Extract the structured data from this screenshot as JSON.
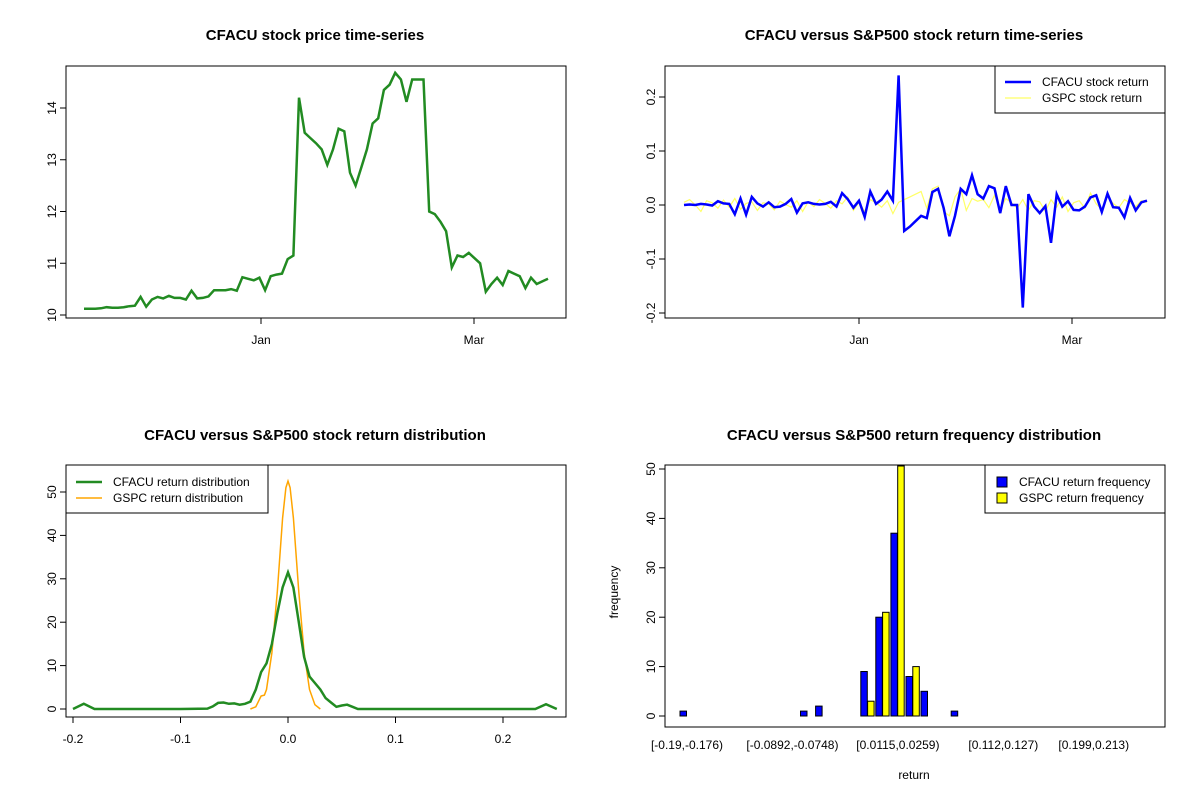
{
  "chart_data": [
    {
      "type": "line",
      "title": "CFACU stock price time-series",
      "xlabel": "",
      "ylabel": "",
      "x_ticks": [
        "Jan",
        "Mar"
      ],
      "y_ticks": [
        "10",
        "11",
        "12",
        "13",
        "14"
      ],
      "ylim": [
        10,
        14.7
      ],
      "color": "#228B22",
      "series": [
        {
          "values": [
            10.12,
            10.12,
            10.12,
            10.13,
            10.15,
            10.14,
            10.14,
            10.15,
            10.17,
            10.18,
            10.35,
            10.16,
            10.3,
            10.35,
            10.32,
            10.37,
            10.33,
            10.33,
            10.3,
            10.47,
            10.32,
            10.33,
            10.36,
            10.48,
            10.48,
            10.48,
            10.5,
            10.47,
            10.73,
            10.7,
            10.67,
            10.72,
            10.48,
            10.75,
            10.78,
            10.8,
            11.08,
            11.15,
            14.2,
            13.52,
            13.42,
            13.32,
            13.2,
            12.9,
            13.2,
            13.6,
            13.55,
            12.75,
            12.5,
            12.85,
            13.2,
            13.7,
            13.8,
            14.35,
            14.45,
            14.68,
            14.55,
            14.12,
            14.55,
            14.55,
            14.55,
            12.0,
            11.95,
            11.8,
            11.62,
            10.92,
            11.15,
            11.12,
            11.2,
            11.1,
            11.0,
            10.45,
            10.6,
            10.72,
            10.58,
            10.85,
            10.8,
            10.75,
            10.52,
            10.72,
            10.6,
            10.65,
            10.7
          ]
        }
      ]
    },
    {
      "type": "line",
      "title": "CFACU versus S&P500 stock return time-series",
      "xlabel": "",
      "ylabel": "",
      "x_ticks": [
        "Jan",
        "Mar"
      ],
      "y_ticks": [
        "-0.2",
        "-0.1",
        "0.0",
        "0.1",
        "0.2"
      ],
      "ylim": [
        -0.2,
        0.24
      ],
      "legend_position": "top-right",
      "series": [
        {
          "name": "CFACU stock return",
          "color": "#0000FF",
          "values": [
            0,
            0.001,
            0,
            0.002,
            0.001,
            -0.001,
            0.007,
            0.003,
            0.002,
            -0.017,
            0.012,
            -0.018,
            0.015,
            0.003,
            -0.003,
            0.005,
            -0.004,
            -0.003,
            0.002,
            0.011,
            -0.014,
            0.003,
            0.005,
            0.002,
            0.001,
            0.002,
            0.006,
            -0.003,
            0.022,
            0.011,
            -0.005,
            0.008,
            -0.022,
            0.025,
            0.002,
            0.01,
            0.025,
            0.008,
            0.24,
            -0.048,
            -0.04,
            -0.03,
            -0.02,
            -0.024,
            0.024,
            0.03,
            -0.006,
            -0.058,
            -0.02,
            0.03,
            0.02,
            0.055,
            0.02,
            0.012,
            0.035,
            0.031,
            -0.015,
            0.035,
            0,
            0,
            -0.19,
            0.02,
            -0.003,
            -0.015,
            -0.002,
            -0.07,
            0.02,
            -0.003,
            0.007,
            -0.009,
            -0.01,
            -0.003,
            0.014,
            0.018,
            -0.013,
            0.021,
            -0.004,
            -0.005,
            -0.023,
            0.013,
            -0.01,
            0.005,
            0.008
          ]
        },
        {
          "name": "GSPC stock return",
          "color": "#FFFF66",
          "values": [
            0.005,
            0.01,
            0,
            -0.012,
            0.008,
            0.004,
            -0.006,
            0.009,
            -0.004,
            0.012,
            -0.008,
            0.003,
            0.006,
            -0.01,
            0.004,
            0.002,
            -0.009,
            0.007,
            0.001,
            -0.004,
            0.008,
            -0.012,
            0.006,
            -0.003,
            0.01,
            0.003,
            -0.006,
            0.008,
            0.002,
            0.015,
            -0.01,
            0.005,
            -0.012,
            0.01,
            0.004,
            -0.004,
            0.008,
            -0.016,
            0.005,
            0.01,
            0.015,
            0.02,
            0.025,
            -0.006,
            0.03,
            0.035,
            -0.012,
            -0.02,
            0.015,
            0.03,
            -0.01,
            0.012,
            0.007,
            0.01,
            -0.005,
            0.018,
            -0.008,
            0.012,
            0.004,
            -0.006,
            0.01,
            -0.01,
            0.008,
            0.006,
            -0.012,
            0.01,
            -0.004,
            0.015,
            -0.012,
            0.004,
            0.008,
            -0.006,
            0.022,
            0.002,
            -0.008,
            0.016,
            0.003,
            -0.005,
            0.01,
            0.004,
            -0.003,
            0.008,
            0.005
          ]
        }
      ]
    },
    {
      "type": "line",
      "title": "CFACU versus S&P500 stock return distribution",
      "xlabel": "",
      "ylabel": "",
      "x_ticks": [
        "-0.2",
        "-0.1",
        "0.0",
        "0.1",
        "0.2"
      ],
      "y_ticks": [
        "0",
        "10",
        "20",
        "30",
        "40",
        "50"
      ],
      "xlim": [
        -0.2,
        0.25
      ],
      "ylim": [
        0,
        53
      ],
      "legend_position": "top-left",
      "series": [
        {
          "name": "CFACU return distribution",
          "color": "#228B22",
          "x": [
            -0.2,
            -0.19,
            -0.18,
            -0.17,
            -0.1,
            -0.075,
            -0.07,
            -0.065,
            -0.06,
            -0.055,
            -0.05,
            -0.045,
            -0.04,
            -0.035,
            -0.03,
            -0.025,
            -0.02,
            -0.015,
            -0.01,
            -0.005,
            0,
            0.005,
            0.01,
            0.015,
            0.02,
            0.025,
            0.03,
            0.035,
            0.04,
            0.045,
            0.05,
            0.055,
            0.06,
            0.065,
            0.07,
            0.1,
            0.2,
            0.23,
            0.24,
            0.25
          ],
          "y": [
            0,
            1.2,
            0,
            0,
            0,
            0.1,
            0.6,
            1.4,
            1.5,
            1.2,
            1.3,
            1.0,
            1.2,
            1.7,
            4.5,
            8.5,
            10.5,
            15,
            22,
            28,
            31.5,
            28,
            20,
            12,
            7.5,
            6,
            4.5,
            2.5,
            1.5,
            0.5,
            0.8,
            1.0,
            0.5,
            0,
            0,
            0,
            0,
            0,
            1.1,
            0
          ]
        },
        {
          "name": "GSPC return distribution",
          "color": "#FFA500",
          "x": [
            -0.035,
            -0.03,
            -0.025,
            -0.022,
            -0.02,
            -0.015,
            -0.01,
            -0.005,
            -0.002,
            0,
            0.002,
            0.005,
            0.01,
            0.015,
            0.02,
            0.025,
            0.03
          ],
          "y": [
            0,
            0.5,
            3.0,
            3.2,
            4.5,
            13,
            27,
            44,
            51,
            52.5,
            51,
            44,
            27,
            13,
            4.5,
            1,
            0
          ]
        }
      ]
    },
    {
      "type": "bar",
      "title": "CFACU versus S&P500 return frequency distribution",
      "xlabel": "return",
      "ylabel": "frequency",
      "ylim": [
        0,
        51
      ],
      "y_ticks": [
        "0",
        "10",
        "20",
        "30",
        "40",
        "50"
      ],
      "x_tick_labels": [
        {
          "label": "[-0.19,-0.176)",
          "index": 0
        },
        {
          "label": "[-0.0892,-0.0748)",
          "index": 7
        },
        {
          "label": "[0.0115,0.0259)",
          "index": 14
        },
        {
          "label": "[0.112,0.127)",
          "index": 21
        },
        {
          "label": "[0.199,0.213)",
          "index": 27
        }
      ],
      "legend_position": "top-right",
      "series": [
        {
          "name": "CFACU return frequency",
          "color": "#0000FF",
          "values": [
            1,
            0,
            0,
            0,
            0,
            0,
            0,
            0,
            1,
            2,
            0,
            0,
            9,
            20,
            37,
            8,
            5,
            0,
            1,
            0,
            0,
            0,
            0,
            0,
            0,
            0,
            0,
            0,
            0,
            0,
            0
          ]
        },
        {
          "name": "GSPC return frequency",
          "color": "#FFFF00",
          "values": [
            0,
            0,
            0,
            0,
            0,
            0,
            0,
            0,
            0,
            0,
            0,
            0,
            3,
            21,
            52,
            10,
            0,
            0,
            0,
            0,
            0,
            0,
            0,
            0,
            0,
            0,
            0,
            0,
            0,
            0,
            0
          ]
        }
      ]
    }
  ]
}
